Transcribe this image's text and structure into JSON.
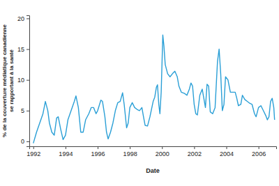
{
  "chart_data": {
    "type": "line",
    "xlabel": "Date",
    "ylabel": [
      "% de la couverture médiatique canadienne",
      "se rapportant à la santé"
    ],
    "color": "#2a9fd6",
    "xlim": [
      1991.75,
      2007.1
    ],
    "xticks": [
      1992,
      1994,
      1996,
      1998,
      2000,
      2002,
      2004,
      2006
    ],
    "ylim": [
      -0.8,
      20.5
    ],
    "yticks": [
      0,
      5,
      10,
      15,
      20
    ],
    "x": [
      1992.0,
      1992.2,
      1992.4,
      1992.6,
      1992.75,
      1992.9,
      1993.0,
      1993.15,
      1993.3,
      1993.45,
      1993.55,
      1993.7,
      1993.85,
      1994.0,
      1994.15,
      1994.35,
      1994.55,
      1994.65,
      1994.8,
      1994.95,
      1995.1,
      1995.25,
      1995.45,
      1995.6,
      1995.75,
      1995.9,
      1996.0,
      1996.2,
      1996.3,
      1996.45,
      1996.55,
      1996.65,
      1996.8,
      1996.95,
      1997.1,
      1997.25,
      1997.4,
      1997.55,
      1997.65,
      1997.8,
      1997.9,
      1998.0,
      1998.15,
      1998.3,
      1998.45,
      1998.6,
      1998.75,
      1998.85,
      1998.95,
      1999.1,
      1999.25,
      1999.45,
      1999.55,
      1999.65,
      1999.72,
      1999.8,
      1999.87,
      1999.95,
      2000.05,
      2000.12,
      2000.2,
      2000.35,
      2000.5,
      2000.65,
      2000.8,
      2000.95,
      2001.05,
      2001.2,
      2001.4,
      2001.55,
      2001.7,
      2001.8,
      2001.9,
      2002.0,
      2002.1,
      2002.2,
      2002.35,
      2002.5,
      2002.6,
      2002.7,
      2002.8,
      2002.9,
      2003.0,
      2003.15,
      2003.3,
      2003.45,
      2003.55,
      2003.65,
      2003.75,
      2003.85,
      2003.95,
      2004.1,
      2004.25,
      2004.4,
      2004.55,
      2004.65,
      2004.75,
      2004.9,
      2005.0,
      2005.15,
      2005.3,
      2005.45,
      2005.6,
      2005.75,
      2005.85,
      2006.0,
      2006.15,
      2006.3,
      2006.45,
      2006.55,
      2006.65,
      2006.75,
      2006.85,
      2006.95,
      2007.0
    ],
    "values": [
      -0.3,
      1.5,
      3.0,
      4.5,
      6.5,
      5.0,
      3.0,
      1.5,
      1.0,
      3.8,
      4.0,
      2.0,
      0.3,
      1.0,
      3.5,
      5.0,
      6.5,
      7.4,
      5.5,
      1.5,
      1.5,
      3.5,
      4.5,
      5.5,
      5.5,
      4.5,
      5.0,
      6.7,
      6.5,
      4.0,
      1.5,
      0.4,
      1.5,
      3.0,
      5.0,
      6.3,
      6.5,
      7.9,
      6.0,
      2.2,
      3.0,
      5.5,
      6.3,
      5.5,
      5.2,
      5.0,
      5.5,
      4.0,
      2.6,
      2.5,
      4.0,
      6.5,
      7.2,
      8.8,
      9.2,
      6.0,
      4.5,
      8.0,
      17.3,
      15.5,
      12.5,
      11.0,
      10.5,
      11.0,
      11.4,
      10.5,
      9.0,
      8.0,
      7.8,
      7.5,
      8.5,
      9.5,
      9.0,
      6.0,
      4.5,
      4.3,
      7.5,
      8.5,
      7.0,
      5.5,
      9.3,
      9.0,
      4.8,
      4.5,
      5.5,
      13.0,
      15.0,
      11.0,
      5.0,
      6.0,
      10.5,
      10.0,
      8.0,
      8.0,
      8.0,
      7.0,
      5.8,
      6.0,
      7.5,
      6.8,
      6.5,
      6.2,
      6.0,
      4.5,
      4.0,
      5.5,
      5.8,
      5.0,
      4.2,
      3.5,
      4.0,
      6.5,
      7.0,
      5.5,
      3.5
    ]
  }
}
